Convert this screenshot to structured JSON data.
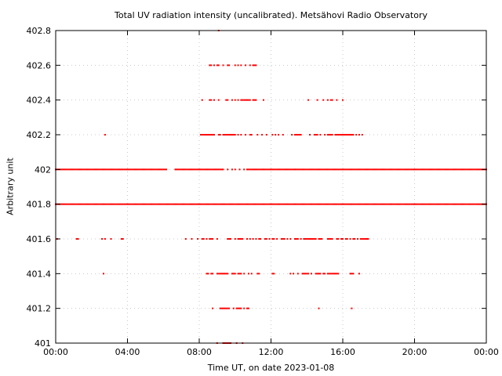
{
  "chart_data": {
    "type": "scatter",
    "title": "Total UV radiation intensity (uncalibrated). Metsähovi Radio Observatory",
    "xlabel": "Time UT, on date 2023-01-08",
    "ylabel": "Arbitrary unit",
    "xlim": [
      "00:00",
      "24:00"
    ],
    "ylim": [
      401,
      402.8
    ],
    "x_ticks": [
      "00:00",
      "04:00",
      "08:00",
      "12:00",
      "16:00",
      "20:00",
      "00:00"
    ],
    "y_ticks": [
      "401",
      "401.2",
      "401.4",
      "401.6",
      "401.8",
      "402",
      "402.2",
      "402.4",
      "402.6",
      "402.8"
    ],
    "grid": true,
    "marker_color": "#ff0000",
    "series": [
      {
        "points_by_level": [
          {
            "y": 401.8,
            "ranges": [
              [
                "00:00",
                "24:00"
              ]
            ]
          },
          {
            "y": 402.0,
            "ranges": [
              [
                "00:00",
                "05:00"
              ],
              [
                "05:05",
                "06:10"
              ],
              [
                "06:40",
                "09:20"
              ],
              [
                "10:40",
                "24:00"
              ]
            ]
          },
          {
            "y": 402.0,
            "times": [
              "09:35",
              "09:50",
              "10:00",
              "10:15",
              "10:30"
            ]
          },
          {
            "y": 401.6,
            "times": [
              "00:05",
              "01:10",
              "01:15",
              "02:35",
              "02:45",
              "03:05",
              "03:40",
              "03:45",
              "07:15",
              "07:35",
              "07:55",
              "08:10",
              "08:15",
              "08:25",
              "08:35",
              "08:40",
              "08:45",
              "09:00",
              "09:35",
              "09:40",
              "09:45",
              "10:00",
              "10:10",
              "10:15",
              "10:20",
              "10:25",
              "10:40",
              "10:50",
              "11:00",
              "11:10",
              "11:20",
              "11:25",
              "11:40",
              "11:45",
              "11:55",
              "12:05",
              "12:10",
              "12:20",
              "12:35",
              "12:40",
              "12:45",
              "12:55",
              "13:05",
              "13:20",
              "13:25",
              "13:30",
              "13:40",
              "13:50",
              "13:55",
              "14:00",
              "14:05",
              "14:10",
              "14:15",
              "14:20",
              "14:25",
              "14:30",
              "14:40",
              "14:45",
              "14:50",
              "15:10",
              "15:15",
              "15:20",
              "15:25",
              "15:40",
              "15:45",
              "15:55",
              "16:00",
              "16:10",
              "16:15",
              "16:25",
              "16:35",
              "16:40",
              "16:50",
              "17:00",
              "17:05",
              "17:10",
              "17:15",
              "17:20",
              "17:25"
            ]
          },
          {
            "y": 401.4,
            "times": [
              "02:40",
              "08:25",
              "08:30",
              "08:40",
              "08:45",
              "09:00",
              "09:05",
              "09:10",
              "09:15",
              "09:20",
              "09:25",
              "09:30",
              "09:35",
              "09:50",
              "09:55",
              "10:00",
              "10:10",
              "10:15",
              "10:20",
              "10:30",
              "10:45",
              "10:55",
              "11:15",
              "11:20",
              "12:05",
              "12:10",
              "13:05",
              "13:15",
              "13:30",
              "13:45",
              "13:50",
              "13:55",
              "14:00",
              "14:05",
              "14:15",
              "14:30",
              "14:35",
              "14:40",
              "14:45",
              "14:55",
              "15:00",
              "15:10",
              "15:15",
              "15:20",
              "15:25",
              "15:30",
              "15:35",
              "15:40",
              "15:45",
              "16:25",
              "16:30",
              "16:35",
              "16:55"
            ]
          },
          {
            "y": 401.2,
            "times": [
              "08:45",
              "09:10",
              "09:15",
              "09:20",
              "09:25",
              "09:30",
              "09:35",
              "09:40",
              "09:55",
              "10:05",
              "10:10",
              "10:15",
              "10:20",
              "10:30",
              "10:40",
              "10:45",
              "14:40",
              "16:30"
            ]
          },
          {
            "y": 401.0,
            "times": [
              "09:00",
              "09:20",
              "09:25",
              "09:30",
              "09:35",
              "09:40",
              "09:45",
              "10:05",
              "10:25"
            ]
          },
          {
            "y": 402.2,
            "times": [
              "02:45",
              "08:05",
              "08:10",
              "08:15",
              "08:20",
              "08:25",
              "08:30",
              "08:35",
              "08:40",
              "08:45",
              "08:50",
              "09:05",
              "09:10",
              "09:20",
              "09:25",
              "09:30",
              "09:35",
              "09:40",
              "09:45",
              "09:50",
              "09:55",
              "10:00",
              "10:10",
              "10:20",
              "10:35",
              "10:50",
              "10:55",
              "11:15",
              "11:30",
              "11:45",
              "12:05",
              "12:15",
              "12:25",
              "12:40",
              "13:10",
              "13:20",
              "13:25",
              "13:30",
              "13:35",
              "13:40",
              "14:10",
              "14:25",
              "14:30",
              "14:35",
              "14:45",
              "15:00",
              "15:10",
              "15:15",
              "15:20",
              "15:25",
              "15:35",
              "15:40",
              "15:45",
              "15:50",
              "15:55",
              "16:00",
              "16:05",
              "16:10",
              "16:15",
              "16:20",
              "16:25",
              "16:30",
              "16:35",
              "16:45",
              "16:55",
              "17:05"
            ]
          },
          {
            "y": 402.4,
            "times": [
              "08:10",
              "08:35",
              "08:40",
              "08:50",
              "09:05",
              "09:30",
              "09:35",
              "09:50",
              "10:00",
              "10:10",
              "10:20",
              "10:25",
              "10:30",
              "10:35",
              "10:40",
              "10:45",
              "10:50",
              "11:00",
              "11:05",
              "11:10",
              "11:35",
              "14:05",
              "14:35",
              "14:55",
              "15:10",
              "15:20",
              "15:25",
              "15:40",
              "16:00"
            ]
          },
          {
            "y": 402.6,
            "times": [
              "08:35",
              "08:40",
              "08:50",
              "09:00",
              "09:05",
              "09:20",
              "09:35",
              "09:40",
              "10:00",
              "10:10",
              "10:20",
              "10:35",
              "10:50",
              "11:00",
              "11:05",
              "11:10"
            ]
          },
          {
            "y": 402.8,
            "times": [
              "09:05"
            ]
          }
        ]
      }
    ]
  }
}
